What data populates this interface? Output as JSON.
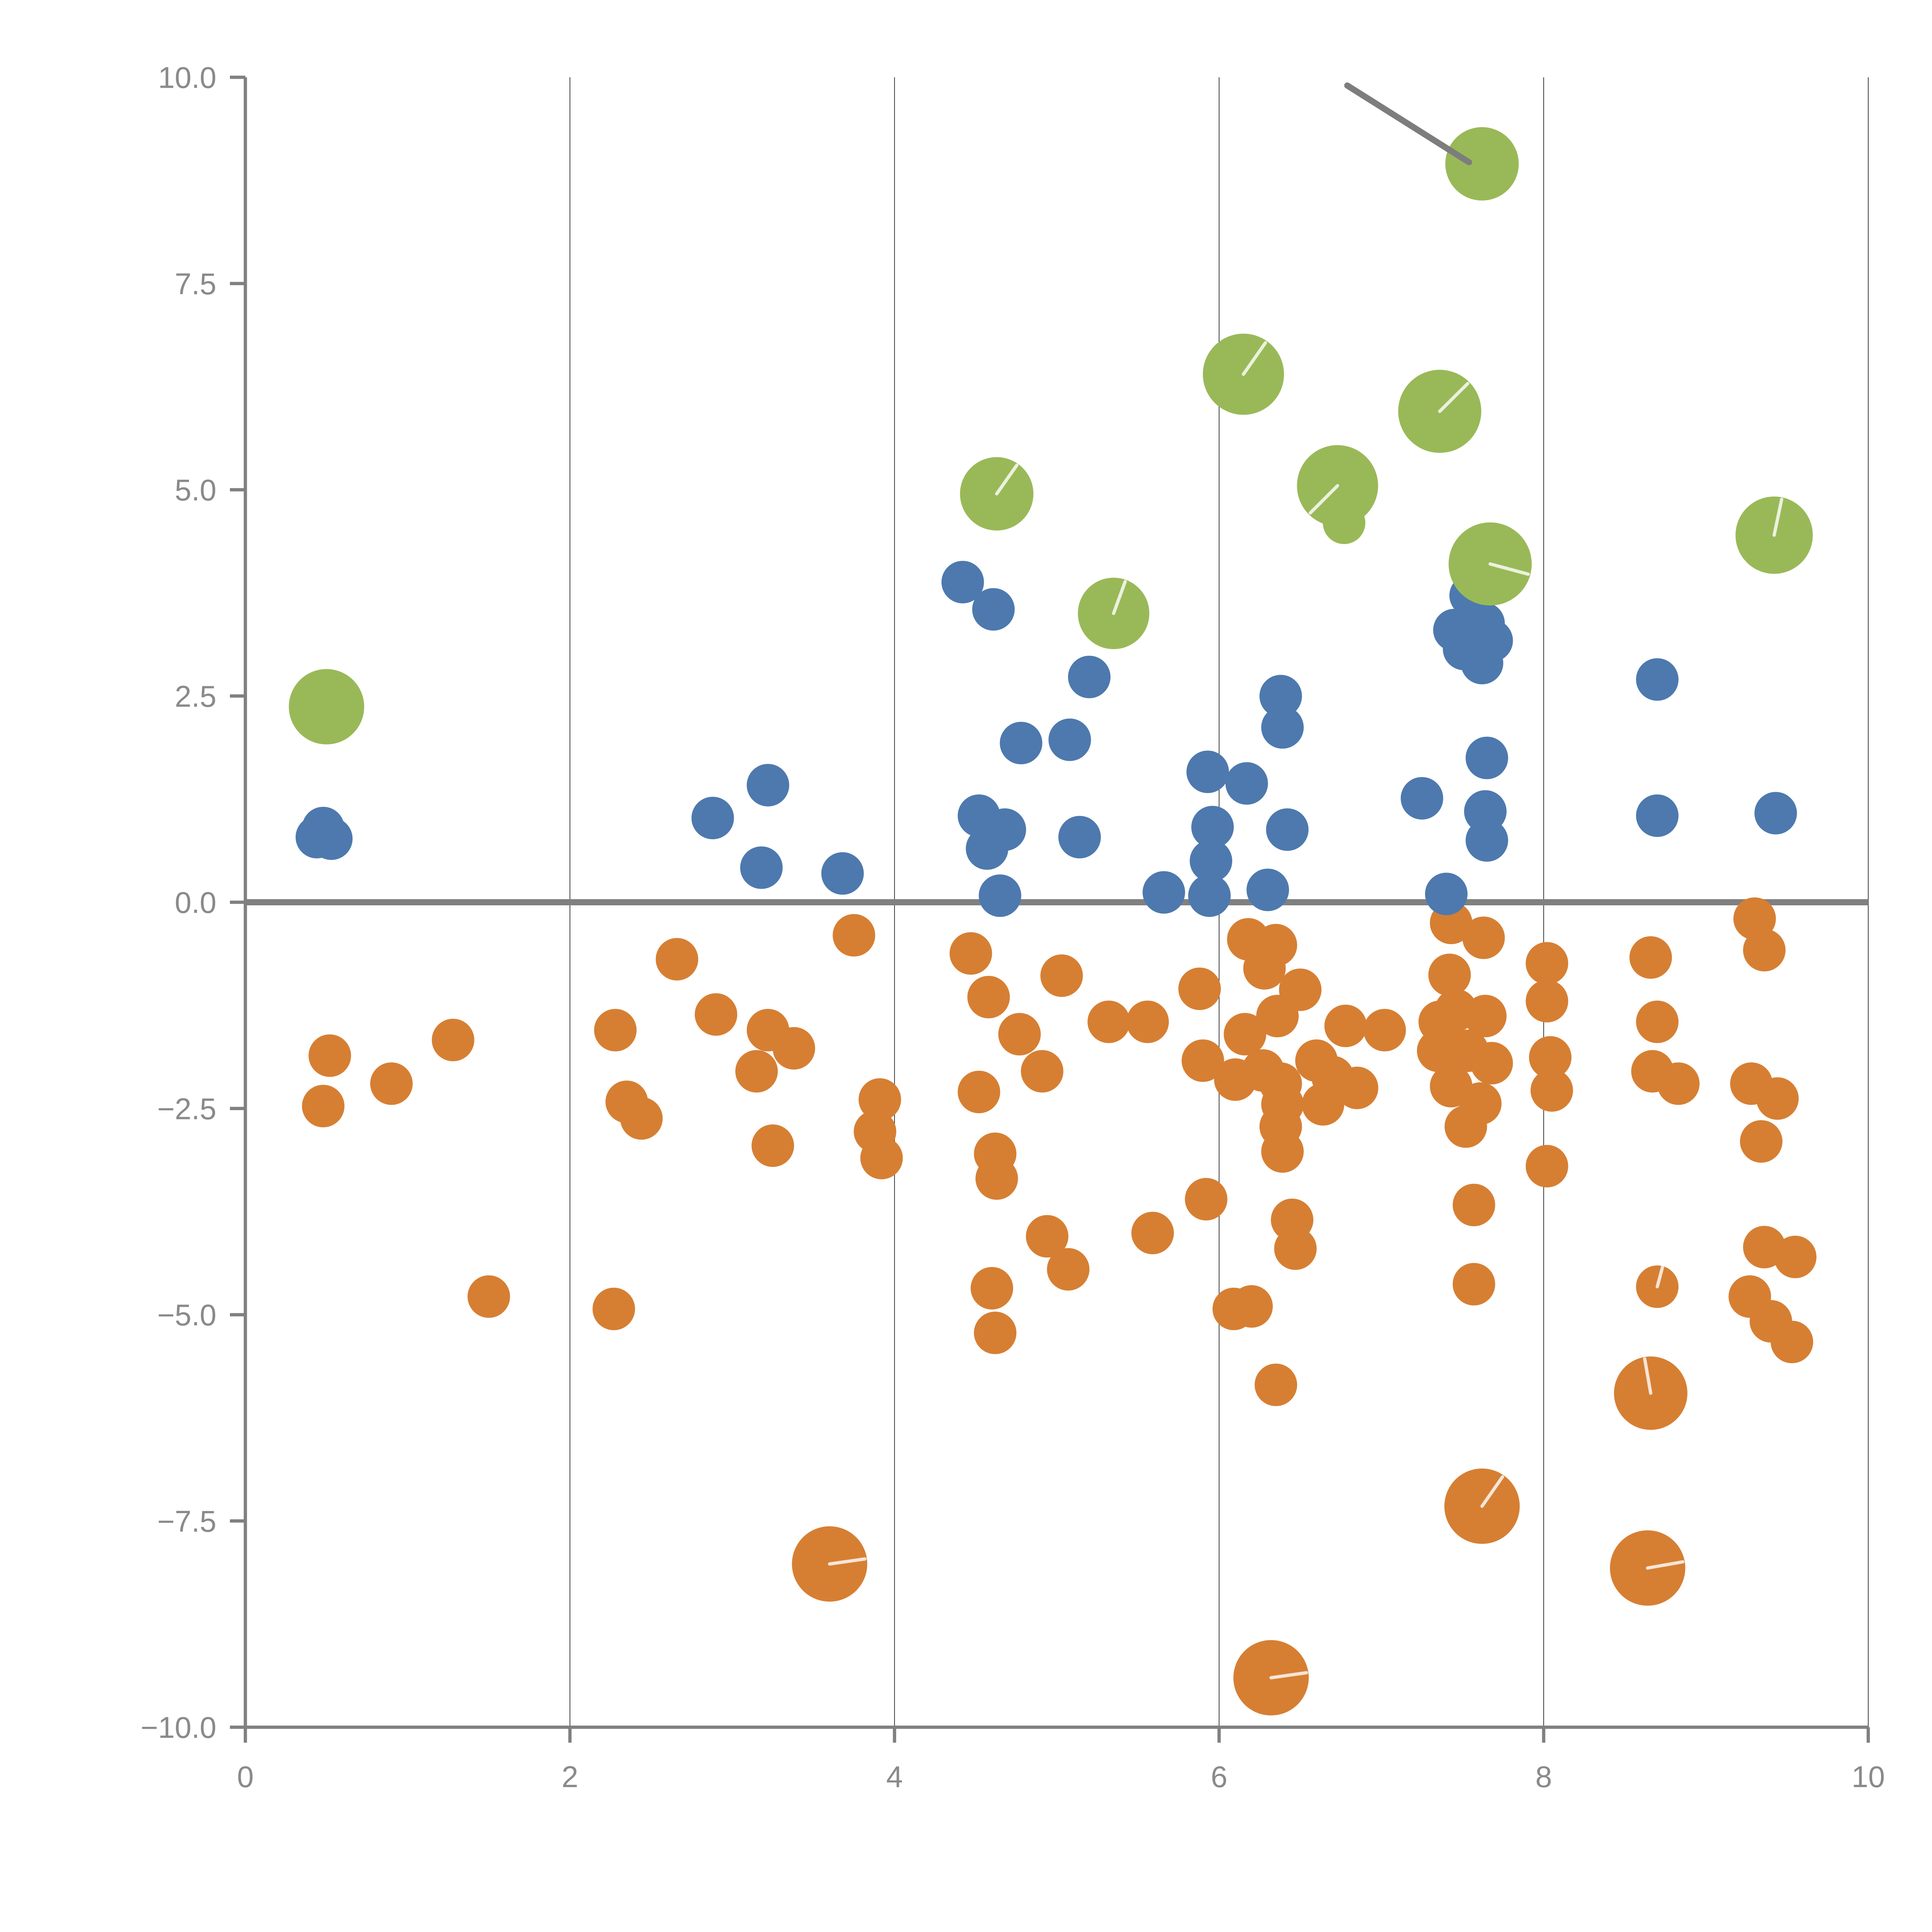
{
  "chart_data": {
    "type": "scatter",
    "title": "",
    "subtitle": "",
    "xlabel": "",
    "ylabel": "",
    "xlim": [
      0,
      10
    ],
    "ylim": [
      -10,
      10
    ],
    "grid": {
      "vertical_at": [
        2,
        4,
        6,
        8,
        10
      ],
      "horizontal": false,
      "zero_line_y": 0
    },
    "legend_position": "none",
    "x_ticks": {
      "values": [
        0,
        2,
        4,
        6,
        8,
        10
      ],
      "labels": [
        "0",
        "2",
        "4",
        "6",
        "8",
        "10"
      ]
    },
    "y_ticks": {
      "values": [
        10,
        7.5,
        5,
        2.5,
        0,
        -2.5,
        -5,
        -7.5,
        -10
      ],
      "labels": [
        "10.0",
        "7.5",
        "5.0",
        "2.5",
        "0.0",
        "−2.5",
        "−5.0",
        "−7.5",
        "−10.0"
      ]
    },
    "colors": {
      "blue": "#4d79ae",
      "orange": "#d67f33",
      "green": "#99b958",
      "axis": "#808080",
      "zero_line": "#808080",
      "gridline": "#3d3d3d",
      "tick_label": "#8a8a8a",
      "annotation_line": "#7d7d7d",
      "bubble_slash": "rgba(255,255,255,0.8)"
    },
    "annotation_line": {
      "x1": 6.79,
      "y1": 9.9,
      "x2": 7.54,
      "y2": 8.97
    },
    "series": [
      {
        "name": "orange",
        "color_key": "orange",
        "points": [
          [
            0.52,
            -1.86,
            11,
            null
          ],
          [
            0.48,
            -2.47,
            11,
            null
          ],
          [
            0.9,
            -2.2,
            11,
            null
          ],
          [
            1.28,
            -1.67,
            11,
            null
          ],
          [
            1.5,
            -4.78,
            11,
            null
          ],
          [
            2.27,
            -4.93,
            11,
            null
          ],
          [
            2.28,
            -1.55,
            11,
            null
          ],
          [
            2.35,
            -2.42,
            11,
            null
          ],
          [
            2.44,
            -2.62,
            11,
            null
          ],
          [
            2.66,
            -0.69,
            11,
            null
          ],
          [
            2.9,
            -1.36,
            11,
            null
          ],
          [
            3.22,
            -1.55,
            11,
            null
          ],
          [
            3.38,
            -1.77,
            11,
            null
          ],
          [
            3.15,
            -2.05,
            11,
            null
          ],
          [
            3.25,
            -2.95,
            11,
            null
          ],
          [
            3.75,
            -0.4,
            11,
            null
          ],
          [
            3.91,
            -2.39,
            11,
            null
          ],
          [
            3.88,
            -2.78,
            11,
            null
          ],
          [
            3.92,
            -3.1,
            11,
            null
          ],
          [
            3.6,
            -8.02,
            19.5,
            8
          ],
          [
            4.47,
            -0.62,
            11,
            null
          ],
          [
            4.58,
            -1.15,
            11,
            null
          ],
          [
            4.77,
            -1.6,
            11,
            null
          ],
          [
            4.52,
            -2.3,
            11,
            null
          ],
          [
            4.91,
            -2.05,
            11,
            null
          ],
          [
            4.62,
            -3.05,
            11,
            null
          ],
          [
            4.63,
            -3.35,
            11,
            null
          ],
          [
            4.6,
            -4.68,
            11,
            null
          ],
          [
            4.62,
            -5.22,
            11,
            null
          ],
          [
            4.94,
            -4.05,
            11,
            null
          ],
          [
            5.07,
            -4.45,
            11,
            null
          ],
          [
            5.03,
            -0.89,
            11,
            null
          ],
          [
            5.32,
            -1.45,
            11,
            null
          ],
          [
            5.56,
            -1.45,
            11,
            null
          ],
          [
            5.59,
            -4.01,
            11,
            null
          ],
          [
            5.88,
            -1.05,
            11,
            null
          ],
          [
            5.9,
            -1.92,
            11,
            null
          ],
          [
            5.92,
            -3.6,
            11,
            null
          ],
          [
            6.09,
            -4.93,
            11,
            null
          ],
          [
            6.18,
            -0.45,
            11,
            null
          ],
          [
            6.35,
            -0.52,
            11,
            null
          ],
          [
            6.28,
            -0.8,
            11,
            null
          ],
          [
            6.16,
            -1.6,
            11,
            null
          ],
          [
            6.36,
            -1.38,
            11,
            null
          ],
          [
            6.5,
            -1.06,
            11,
            null
          ],
          [
            6.27,
            -2.04,
            11,
            null
          ],
          [
            6.1,
            -2.15,
            11,
            null
          ],
          [
            6.38,
            -2.2,
            11,
            null
          ],
          [
            6.39,
            -2.45,
            11,
            null
          ],
          [
            6.38,
            -2.72,
            11,
            null
          ],
          [
            6.39,
            -3.02,
            11,
            null
          ],
          [
            6.45,
            -3.85,
            11,
            null
          ],
          [
            6.47,
            -4.2,
            11,
            null
          ],
          [
            6.2,
            -4.9,
            11,
            null
          ],
          [
            6.35,
            -5.85,
            11,
            null
          ],
          [
            6.32,
            -9.4,
            19.5,
            8
          ],
          [
            6.6,
            -1.92,
            11,
            null
          ],
          [
            6.7,
            -2.12,
            11,
            null
          ],
          [
            6.64,
            -2.45,
            11,
            null
          ],
          [
            6.85,
            -2.25,
            11,
            null
          ],
          [
            6.78,
            -1.5,
            11,
            null
          ],
          [
            7.02,
            -1.55,
            11,
            null
          ],
          [
            7.43,
            -0.25,
            11,
            null
          ],
          [
            7.63,
            -0.43,
            11,
            null
          ],
          [
            7.42,
            -0.88,
            11,
            null
          ],
          [
            7.36,
            -1.45,
            11,
            null
          ],
          [
            7.46,
            -1.31,
            11,
            null
          ],
          [
            7.64,
            -1.38,
            11,
            null
          ],
          [
            7.35,
            -1.8,
            11,
            null
          ],
          [
            7.53,
            -1.8,
            11,
            null
          ],
          [
            7.68,
            -1.95,
            11,
            null
          ],
          [
            7.43,
            -2.23,
            11,
            null
          ],
          [
            7.61,
            -2.44,
            11,
            null
          ],
          [
            7.52,
            -2.72,
            11,
            null
          ],
          [
            7.57,
            -3.67,
            11,
            null
          ],
          [
            7.57,
            -4.63,
            11,
            null
          ],
          [
            7.62,
            -7.32,
            19.5,
            55
          ],
          [
            8.02,
            -0.74,
            11,
            null
          ],
          [
            8.02,
            -1.2,
            11,
            null
          ],
          [
            8.04,
            -1.88,
            11,
            null
          ],
          [
            8.05,
            -2.28,
            11,
            null
          ],
          [
            8.02,
            -3.2,
            11,
            null
          ],
          [
            8.66,
            -0.67,
            11,
            null
          ],
          [
            8.7,
            -1.45,
            11,
            null
          ],
          [
            8.67,
            -2.05,
            11,
            null
          ],
          [
            8.83,
            -2.2,
            11,
            null
          ],
          [
            8.7,
            -4.66,
            11,
            75
          ],
          [
            8.66,
            -5.95,
            19,
            100
          ],
          [
            8.64,
            -8.07,
            19.5,
            10
          ],
          [
            9.3,
            -0.2,
            11,
            null
          ],
          [
            9.36,
            -0.58,
            11,
            null
          ],
          [
            9.28,
            -2.2,
            11,
            null
          ],
          [
            9.44,
            -2.38,
            11,
            null
          ],
          [
            9.34,
            -2.9,
            11,
            null
          ],
          [
            9.36,
            -4.18,
            11,
            null
          ],
          [
            9.55,
            -4.3,
            11,
            null
          ],
          [
            9.27,
            -4.78,
            11,
            null
          ],
          [
            9.4,
            -5.08,
            11,
            null
          ],
          [
            9.53,
            -5.33,
            11,
            null
          ]
        ]
      },
      {
        "name": "blue",
        "color_key": "blue",
        "points": [
          [
            0.48,
            0.9,
            11,
            null
          ],
          [
            0.53,
            0.77,
            11,
            null
          ],
          [
            0.44,
            0.79,
            11,
            null
          ],
          [
            2.88,
            1.02,
            11,
            null
          ],
          [
            3.22,
            1.42,
            11,
            null
          ],
          [
            3.18,
            0.42,
            11,
            null
          ],
          [
            3.68,
            0.35,
            11,
            null
          ],
          [
            4.42,
            3.88,
            11,
            null
          ],
          [
            4.61,
            3.55,
            11,
            null
          ],
          [
            4.52,
            1.05,
            11,
            null
          ],
          [
            4.68,
            0.88,
            11,
            null
          ],
          [
            4.57,
            0.65,
            11,
            null
          ],
          [
            4.78,
            1.93,
            11,
            null
          ],
          [
            5.08,
            1.97,
            11,
            null
          ],
          [
            5.2,
            2.73,
            11,
            null
          ],
          [
            5.14,
            0.79,
            11,
            null
          ],
          [
            4.65,
            0.08,
            11,
            null
          ],
          [
            5.66,
            0.12,
            11,
            null
          ],
          [
            5.93,
            1.58,
            11,
            null
          ],
          [
            6.17,
            1.44,
            11,
            null
          ],
          [
            5.96,
            0.91,
            11,
            null
          ],
          [
            5.95,
            0.5,
            11,
            null
          ],
          [
            5.94,
            0.08,
            11,
            null
          ],
          [
            6.38,
            2.5,
            11,
            null
          ],
          [
            6.39,
            2.12,
            11,
            null
          ],
          [
            6.42,
            0.88,
            11,
            null
          ],
          [
            6.3,
            0.15,
            11,
            null
          ],
          [
            7.25,
            1.26,
            11,
            null
          ],
          [
            7.55,
            3.72,
            11,
            null
          ],
          [
            7.45,
            3.3,
            11,
            null
          ],
          [
            7.63,
            3.38,
            11,
            null
          ],
          [
            7.51,
            3.07,
            11,
            null
          ],
          [
            7.68,
            3.17,
            11,
            null
          ],
          [
            7.62,
            2.9,
            11,
            null
          ],
          [
            7.65,
            1.75,
            11,
            null
          ],
          [
            7.64,
            1.1,
            11,
            null
          ],
          [
            7.65,
            0.75,
            11,
            null
          ],
          [
            7.4,
            0.1,
            11,
            null
          ],
          [
            8.7,
            2.7,
            11,
            null
          ],
          [
            8.7,
            1.05,
            11,
            null
          ],
          [
            9.43,
            1.08,
            11,
            null
          ]
        ]
      },
      {
        "name": "green",
        "color_key": "green",
        "points": [
          [
            0.5,
            2.37,
            19.5,
            null
          ],
          [
            4.63,
            4.95,
            19,
            55
          ],
          [
            5.35,
            3.5,
            18.5,
            70
          ],
          [
            6.15,
            6.4,
            21,
            55
          ],
          [
            6.77,
            4.6,
            11,
            null
          ],
          [
            6.73,
            5.05,
            21,
            225
          ],
          [
            7.36,
            5.95,
            21.5,
            45
          ],
          [
            7.67,
            4.1,
            21.5,
            -15
          ],
          [
            7.62,
            8.95,
            19,
            null
          ],
          [
            9.42,
            4.45,
            20,
            78
          ]
        ]
      }
    ]
  }
}
